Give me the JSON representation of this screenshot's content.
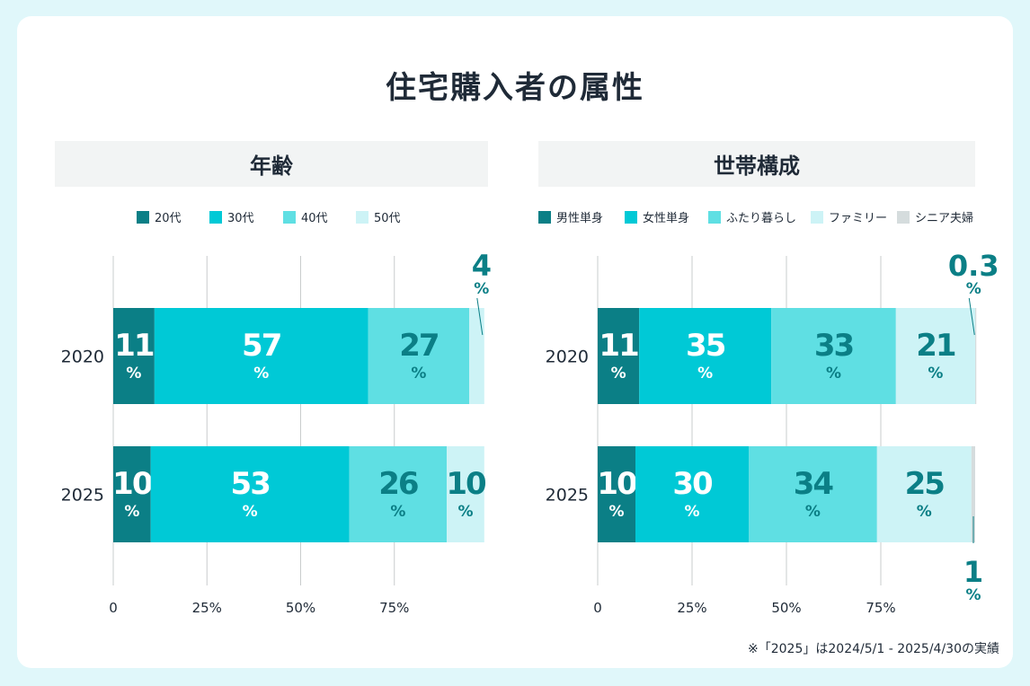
{
  "title": "住宅購入者の属性",
  "footnote": "※「2025」は2024/5/1 - 2025/4/30の実績",
  "chart_data": [
    {
      "type": "bar",
      "orientation": "horizontal",
      "stacked": true,
      "title": "年齢",
      "categories": [
        "2020",
        "2025"
      ],
      "series": [
        {
          "name": "20代",
          "color": "#0b7f86",
          "values": [
            11,
            10
          ]
        },
        {
          "name": "30代",
          "color": "#00c9d6",
          "values": [
            57,
            53
          ]
        },
        {
          "name": "40代",
          "color": "#5fdfe3",
          "values": [
            27,
            26
          ]
        },
        {
          "name": "50代",
          "color": "#cdf3f6",
          "values": [
            4,
            10
          ]
        }
      ],
      "value_unit": "%",
      "xlim": [
        0,
        100
      ],
      "x_ticks": [
        "0",
        "25%",
        "50%",
        "75%"
      ],
      "grid": true,
      "legend": "top"
    },
    {
      "type": "bar",
      "orientation": "horizontal",
      "stacked": true,
      "title": "世帯構成",
      "categories": [
        "2020",
        "2025"
      ],
      "series": [
        {
          "name": "男性単身",
          "color": "#0b7f86",
          "values": [
            11,
            10
          ]
        },
        {
          "name": "女性単身",
          "color": "#00c9d6",
          "values": [
            35,
            30
          ]
        },
        {
          "name": "ふたり暮らし",
          "color": "#5fdfe3",
          "values": [
            33,
            34
          ]
        },
        {
          "name": "ファミリー",
          "color": "#cdf3f6",
          "values": [
            21,
            25
          ]
        },
        {
          "name": "シニア夫婦",
          "color": "#d5dcdd",
          "values": [
            0.3,
            1
          ]
        }
      ],
      "value_unit": "%",
      "xlim": [
        0,
        100
      ],
      "x_ticks": [
        "0",
        "25%",
        "50%",
        "75%"
      ],
      "grid": true,
      "legend": "top"
    }
  ]
}
